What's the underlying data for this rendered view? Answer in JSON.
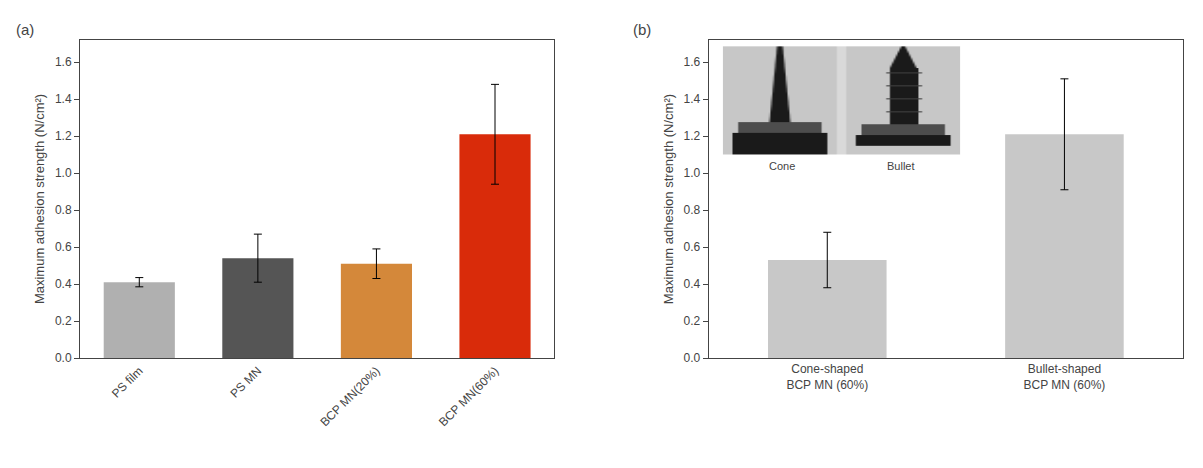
{
  "chart_data": [
    {
      "type": "bar",
      "title": "(a)",
      "categories": [
        "PS film",
        "PS MN",
        "BCP MN(20%)",
        "BCP MN(60%)"
      ],
      "values": [
        0.41,
        0.54,
        0.51,
        1.21
      ],
      "errors": [
        0.025,
        0.13,
        0.08,
        0.27
      ],
      "colors": [
        "#b0b0b0",
        "#555555",
        "#d4883a",
        "#d92b0a"
      ],
      "ylabel": "Maximum adhesion strength (N/cm²)",
      "ylim": [
        0,
        1.72
      ],
      "yticks": [
        {
          "value": 0.0,
          "label": "0.0"
        },
        0.2,
        0.4,
        0.6,
        0.8,
        {
          "value": 1.0,
          "label": "1.0"
        },
        1.2,
        1.4,
        1.6
      ],
      "grid": false
    },
    {
      "type": "bar",
      "title": "(b)",
      "categories": [
        "Cone-shaped\nBCP MN (60%)",
        "Bullet-shaped\nBCP MN (60%)"
      ],
      "values": [
        0.53,
        1.21
      ],
      "errors": [
        0.15,
        0.3
      ],
      "colors": [
        "#c8c8c8",
        "#c8c8c8"
      ],
      "ylabel": "Maximum adhesion strength (N/cm²)",
      "ylim": [
        0,
        1.72
      ],
      "yticks": [
        {
          "value": 0.0,
          "label": "0.0"
        },
        0.2,
        0.4,
        0.6,
        0.8,
        {
          "value": 1.0,
          "label": "1.0"
        },
        1.2,
        1.4,
        1.6
      ],
      "annotations": [
        "Cone",
        "Bullet"
      ],
      "grid": false
    }
  ]
}
